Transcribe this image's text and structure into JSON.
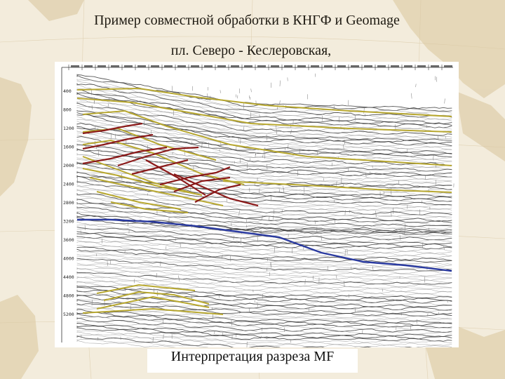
{
  "slide": {
    "title_line1": "Пример совместной обработки  в КНГФ и Geomage",
    "title_line2": "пл. Северо -  Кеслеровская,",
    "caption": "Интерпретация разреза MF"
  },
  "section": {
    "depth_ticks": [
      "400",
      "800",
      "1200",
      "1600",
      "2000",
      "2400",
      "2800",
      "3200",
      "3600",
      "4000",
      "4400",
      "4800",
      "5200"
    ],
    "colors": {
      "horizon_yellow": "#b8a830",
      "fault_red": "#8b1a1a",
      "horizon_blue": "#2a3aa0",
      "trace": "#555555"
    }
  }
}
